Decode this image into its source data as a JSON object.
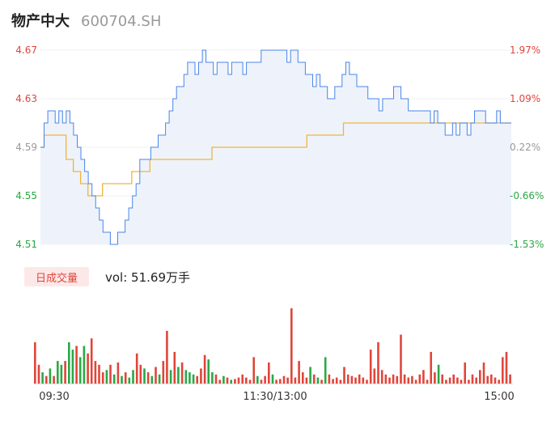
{
  "header": {
    "name": "物产中大",
    "code": "600704.SH"
  },
  "volume_panel": {
    "badge": "日成交量",
    "summary": "vol: 51.69万手"
  },
  "colors": {
    "price": "#4a86e8",
    "avg": "#f0b43c",
    "up": "#e0453a",
    "down": "#2aa845",
    "area": "#eef3fb"
  },
  "chart_data": {
    "type": "line",
    "price_axis": {
      "ticks": [
        "4.67",
        "4.63",
        "4.59",
        "4.55",
        "4.51"
      ],
      "pct_ticks": [
        "1.97%",
        "1.09%",
        "0.22%",
        "-0.66%",
        "-1.53%"
      ],
      "ylim": [
        4.51,
        4.67
      ]
    },
    "time_labels": [
      "09:30",
      "11:30/13:00",
      "15:00"
    ],
    "series": [
      {
        "values": [
          4.59,
          4.61,
          4.62,
          4.62,
          4.61,
          4.62,
          4.61,
          4.62,
          4.61,
          4.6,
          4.59,
          4.58,
          4.57,
          4.56,
          4.55,
          4.54,
          4.53,
          4.52,
          4.52,
          4.51,
          4.51,
          4.52,
          4.52,
          4.53,
          4.54,
          4.55,
          4.56,
          4.58,
          4.58,
          4.58,
          4.59,
          4.59,
          4.6,
          4.6,
          4.61,
          4.62,
          4.63,
          4.64,
          4.64,
          4.65,
          4.66,
          4.66,
          4.65,
          4.66,
          4.67,
          4.66,
          4.66,
          4.65,
          4.66,
          4.66,
          4.66,
          4.65,
          4.66,
          4.66,
          4.66,
          4.65,
          4.66,
          4.66,
          4.66,
          4.66,
          4.67,
          4.67,
          4.67,
          4.67,
          4.67,
          4.67,
          4.67,
          4.66,
          4.67,
          4.67,
          4.66,
          4.66,
          4.65,
          4.65,
          4.64,
          4.65,
          4.64,
          4.64,
          4.63,
          4.63,
          4.64,
          4.64,
          4.65,
          4.66,
          4.65,
          4.65,
          4.64,
          4.64,
          4.64,
          4.63,
          4.63,
          4.63,
          4.62,
          4.63,
          4.63,
          4.63,
          4.64,
          4.64,
          4.63,
          4.63,
          4.62,
          4.62,
          4.62,
          4.62,
          4.62,
          4.62,
          4.61,
          4.62,
          4.61,
          4.61,
          4.6,
          4.6,
          4.61,
          4.6,
          4.61,
          4.61,
          4.6,
          4.61,
          4.62,
          4.62,
          4.62,
          4.61,
          4.61,
          4.61,
          4.62,
          4.61,
          4.61,
          4.61,
          4.61
        ]
      },
      {
        "values": [
          4.59,
          4.6,
          4.6,
          4.6,
          4.6,
          4.6,
          4.6,
          4.58,
          4.58,
          4.57,
          4.57,
          4.56,
          4.56,
          4.55,
          4.55,
          4.55,
          4.55,
          4.56,
          4.56,
          4.56,
          4.56,
          4.56,
          4.56,
          4.56,
          4.56,
          4.57,
          4.57,
          4.57,
          4.57,
          4.57,
          4.58,
          4.58,
          4.58,
          4.58,
          4.58,
          4.58,
          4.58,
          4.58,
          4.58,
          4.58,
          4.58,
          4.58,
          4.58,
          4.58,
          4.58,
          4.58,
          4.58,
          4.59,
          4.59,
          4.59,
          4.59,
          4.59,
          4.59,
          4.59,
          4.59,
          4.59,
          4.59,
          4.59,
          4.59,
          4.59,
          4.59,
          4.59,
          4.59,
          4.59,
          4.59,
          4.59,
          4.59,
          4.59,
          4.59,
          4.59,
          4.59,
          4.59,
          4.59,
          4.6,
          4.6,
          4.6,
          4.6,
          4.6,
          4.6,
          4.6,
          4.6,
          4.6,
          4.6,
          4.61,
          4.61,
          4.61,
          4.61,
          4.61,
          4.61,
          4.61,
          4.61,
          4.61,
          4.61,
          4.61,
          4.61,
          4.61,
          4.61,
          4.61,
          4.61,
          4.61,
          4.61,
          4.61,
          4.61,
          4.61,
          4.61,
          4.61,
          4.61,
          4.61,
          4.61,
          4.61,
          4.61,
          4.61,
          4.61,
          4.61,
          4.61,
          4.61,
          4.61,
          4.61,
          4.61,
          4.61,
          4.61,
          4.61,
          4.61,
          4.61,
          4.61,
          4.61,
          4.61,
          4.61,
          4.61,
          4.61
        ]
      }
    ],
    "volume": [
      [
        0.55,
        1
      ],
      [
        0.25,
        1
      ],
      [
        0.15,
        0
      ],
      [
        0.1,
        1
      ],
      [
        0.2,
        0
      ],
      [
        0.1,
        1
      ],
      [
        0.3,
        0
      ],
      [
        0.25,
        0
      ],
      [
        0.3,
        1
      ],
      [
        0.55,
        0
      ],
      [
        0.45,
        0
      ],
      [
        0.5,
        1
      ],
      [
        0.35,
        0
      ],
      [
        0.5,
        0
      ],
      [
        0.4,
        1
      ],
      [
        0.6,
        1
      ],
      [
        0.3,
        1
      ],
      [
        0.25,
        1
      ],
      [
        0.15,
        1
      ],
      [
        0.18,
        0
      ],
      [
        0.25,
        1
      ],
      [
        0.12,
        0
      ],
      [
        0.28,
        1
      ],
      [
        0.1,
        0
      ],
      [
        0.15,
        1
      ],
      [
        0.08,
        0
      ],
      [
        0.18,
        0
      ],
      [
        0.4,
        1
      ],
      [
        0.25,
        1
      ],
      [
        0.2,
        0
      ],
      [
        0.15,
        1
      ],
      [
        0.1,
        0
      ],
      [
        0.22,
        1
      ],
      [
        0.12,
        0
      ],
      [
        0.3,
        1
      ],
      [
        0.7,
        1
      ],
      [
        0.18,
        0
      ],
      [
        0.42,
        1
      ],
      [
        0.22,
        0
      ],
      [
        0.28,
        1
      ],
      [
        0.18,
        0
      ],
      [
        0.15,
        0
      ],
      [
        0.12,
        0
      ],
      [
        0.1,
        1
      ],
      [
        0.2,
        1
      ],
      [
        0.38,
        1
      ],
      [
        0.32,
        0
      ],
      [
        0.15,
        0
      ],
      [
        0.12,
        1
      ],
      [
        0.05,
        1
      ],
      [
        0.1,
        0
      ],
      [
        0.08,
        1
      ],
      [
        0.05,
        0
      ],
      [
        0.06,
        1
      ],
      [
        0.08,
        1
      ],
      [
        0.12,
        1
      ],
      [
        0.08,
        1
      ],
      [
        0.05,
        1
      ],
      [
        0.35,
        1
      ],
      [
        0.1,
        0
      ],
      [
        0.05,
        1
      ],
      [
        0.1,
        1
      ],
      [
        0.28,
        1
      ],
      [
        0.12,
        0
      ],
      [
        0.05,
        1
      ],
      [
        0.06,
        1
      ],
      [
        0.1,
        1
      ],
      [
        0.08,
        1
      ],
      [
        1.0,
        1
      ],
      [
        0.08,
        1
      ],
      [
        0.3,
        1
      ],
      [
        0.15,
        1
      ],
      [
        0.08,
        1
      ],
      [
        0.22,
        0
      ],
      [
        0.12,
        1
      ],
      [
        0.08,
        0
      ],
      [
        0.05,
        1
      ],
      [
        0.35,
        0
      ],
      [
        0.12,
        1
      ],
      [
        0.06,
        1
      ],
      [
        0.08,
        1
      ],
      [
        0.05,
        1
      ],
      [
        0.22,
        1
      ],
      [
        0.12,
        1
      ],
      [
        0.1,
        1
      ],
      [
        0.08,
        1
      ],
      [
        0.12,
        1
      ],
      [
        0.08,
        1
      ],
      [
        0.05,
        1
      ],
      [
        0.45,
        1
      ],
      [
        0.2,
        1
      ],
      [
        0.55,
        1
      ],
      [
        0.18,
        1
      ],
      [
        0.12,
        1
      ],
      [
        0.08,
        1
      ],
      [
        0.12,
        1
      ],
      [
        0.1,
        1
      ],
      [
        0.65,
        1
      ],
      [
        0.12,
        1
      ],
      [
        0.08,
        1
      ],
      [
        0.1,
        1
      ],
      [
        0.05,
        1
      ],
      [
        0.12,
        1
      ],
      [
        0.18,
        1
      ],
      [
        0.05,
        1
      ],
      [
        0.42,
        1
      ],
      [
        0.15,
        1
      ],
      [
        0.25,
        0
      ],
      [
        0.12,
        1
      ],
      [
        0.05,
        1
      ],
      [
        0.08,
        1
      ],
      [
        0.12,
        1
      ],
      [
        0.08,
        1
      ],
      [
        0.05,
        1
      ],
      [
        0.28,
        1
      ],
      [
        0.05,
        1
      ],
      [
        0.12,
        1
      ],
      [
        0.08,
        1
      ],
      [
        0.18,
        1
      ],
      [
        0.28,
        1
      ],
      [
        0.1,
        1
      ],
      [
        0.12,
        1
      ],
      [
        0.08,
        1
      ],
      [
        0.05,
        1
      ],
      [
        0.35,
        1
      ],
      [
        0.42,
        1
      ],
      [
        0.12,
        1
      ]
    ]
  }
}
